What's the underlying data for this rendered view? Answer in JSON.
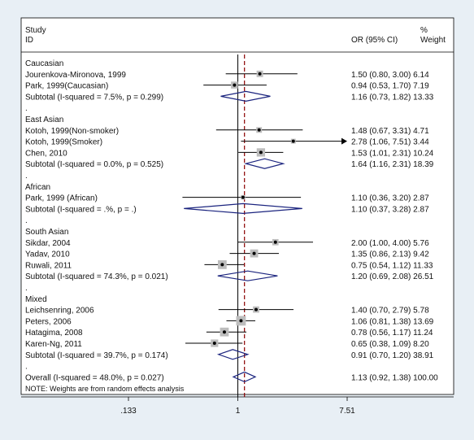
{
  "chart_data": {
    "type": "forest",
    "header": {
      "col1_line1": "Study",
      "col1_line2": "ID",
      "col2": "OR (95% CI)",
      "col3_line1": "%",
      "col3_line2": "Weight"
    },
    "note": "NOTE: Weights are from random effects analysis",
    "x_axis": {
      "scale": "log",
      "ticks": [
        ".133",
        "1",
        "7.51"
      ],
      "tick_values": [
        0.133,
        1,
        7.51
      ],
      "range": [
        0.133,
        7.51
      ]
    },
    "overall_effect": 1.13,
    "groups": [
      {
        "name": "Caucasian",
        "studies": [
          {
            "id": "Jourenkova-Mironova, 1999",
            "or": 1.5,
            "lo": 0.8,
            "hi": 3.0,
            "weight": 6.14,
            "text": "1.50 (0.80, 3.00) 6.14"
          },
          {
            "id": "Park, 1999(Caucasian)",
            "or": 0.94,
            "lo": 0.53,
            "hi": 1.7,
            "weight": 7.19,
            "text": "0.94 (0.53, 1.70) 7.19"
          }
        ],
        "subtotal": {
          "label": "Subtotal  (I-squared = 7.5%, p = 0.299)",
          "or": 1.16,
          "lo": 0.73,
          "hi": 1.82,
          "text": "1.16 (0.73, 1.82) 13.33"
        }
      },
      {
        "name": "East Asian",
        "studies": [
          {
            "id": "Kotoh, 1999(Non-smoker)",
            "or": 1.48,
            "lo": 0.67,
            "hi": 3.31,
            "weight": 4.71,
            "text": "1.48 (0.67, 3.31) 4.71"
          },
          {
            "id": "Kotoh, 1999(Smoker)",
            "or": 2.78,
            "lo": 1.06,
            "hi": 7.51,
            "weight": 3.44,
            "text": "2.78 (1.06, 7.51) 3.44",
            "arrow": true
          },
          {
            "id": "Chen, 2010",
            "or": 1.53,
            "lo": 1.01,
            "hi": 2.31,
            "weight": 10.24,
            "text": "1.53 (1.01, 2.31) 10.24"
          }
        ],
        "subtotal": {
          "label": "Subtotal  (I-squared = 0.0%, p = 0.525)",
          "or": 1.64,
          "lo": 1.16,
          "hi": 2.31,
          "text": "1.64 (1.16, 2.31) 18.39"
        }
      },
      {
        "name": "African",
        "studies": [
          {
            "id": "Park, 1999 (African)",
            "or": 1.1,
            "lo": 0.36,
            "hi": 3.2,
            "weight": 2.87,
            "text": "1.10 (0.36, 3.20) 2.87"
          }
        ],
        "subtotal": {
          "label": "Subtotal  (I-squared = .%, p = .)",
          "or": 1.1,
          "lo": 0.37,
          "hi": 3.28,
          "text": "1.10 (0.37, 3.28) 2.87"
        }
      },
      {
        "name": "South Asian",
        "studies": [
          {
            "id": "Sikdar, 2004",
            "or": 2.0,
            "lo": 1.0,
            "hi": 4.0,
            "weight": 5.76,
            "text": "2.00 (1.00, 4.00) 5.76"
          },
          {
            "id": "Yadav, 2010",
            "or": 1.35,
            "lo": 0.86,
            "hi": 2.13,
            "weight": 9.42,
            "text": "1.35 (0.86, 2.13) 9.42"
          },
          {
            "id": "Ruwali, 2011",
            "or": 0.75,
            "lo": 0.54,
            "hi": 1.12,
            "weight": 11.33,
            "text": "0.75 (0.54, 1.12) 11.33"
          }
        ],
        "subtotal": {
          "label": "Subtotal  (I-squared = 74.3%, p = 0.021)",
          "or": 1.2,
          "lo": 0.69,
          "hi": 2.08,
          "text": "1.20 (0.69, 2.08) 26.51"
        }
      },
      {
        "name": "Mixed",
        "studies": [
          {
            "id": "Leichsenring, 2006",
            "or": 1.4,
            "lo": 0.7,
            "hi": 2.79,
            "weight": 5.78,
            "text": "1.40 (0.70, 2.79) 5.78"
          },
          {
            "id": "Peters, 2006",
            "or": 1.06,
            "lo": 0.81,
            "hi": 1.38,
            "weight": 13.69,
            "text": "1.06 (0.81, 1.38) 13.69"
          },
          {
            "id": "Hatagima, 2008",
            "or": 0.78,
            "lo": 0.56,
            "hi": 1.17,
            "weight": 11.24,
            "text": "0.78 (0.56, 1.17) 11.24"
          },
          {
            "id": "Karen-Ng, 2011",
            "or": 0.65,
            "lo": 0.38,
            "hi": 1.09,
            "weight": 8.2,
            "text": "0.65 (0.38, 1.09) 8.20"
          }
        ],
        "subtotal": {
          "label": "Subtotal  (I-squared = 39.7%, p = 0.174)",
          "or": 0.91,
          "lo": 0.7,
          "hi": 1.2,
          "text": "0.91 (0.70, 1.20) 38.91"
        }
      }
    ],
    "overall": {
      "label": "Overall  (I-squared = 48.0%, p = 0.027)",
      "or": 1.13,
      "lo": 0.92,
      "hi": 1.38,
      "text": "1.13 (0.92, 1.38) 100.00"
    },
    "colors": {
      "background": "#e8eff5",
      "panel": "#ffffff",
      "diamond": "#1a237e",
      "reference_line": "#8b0000",
      "weight_box": "#bdbdbd"
    }
  }
}
